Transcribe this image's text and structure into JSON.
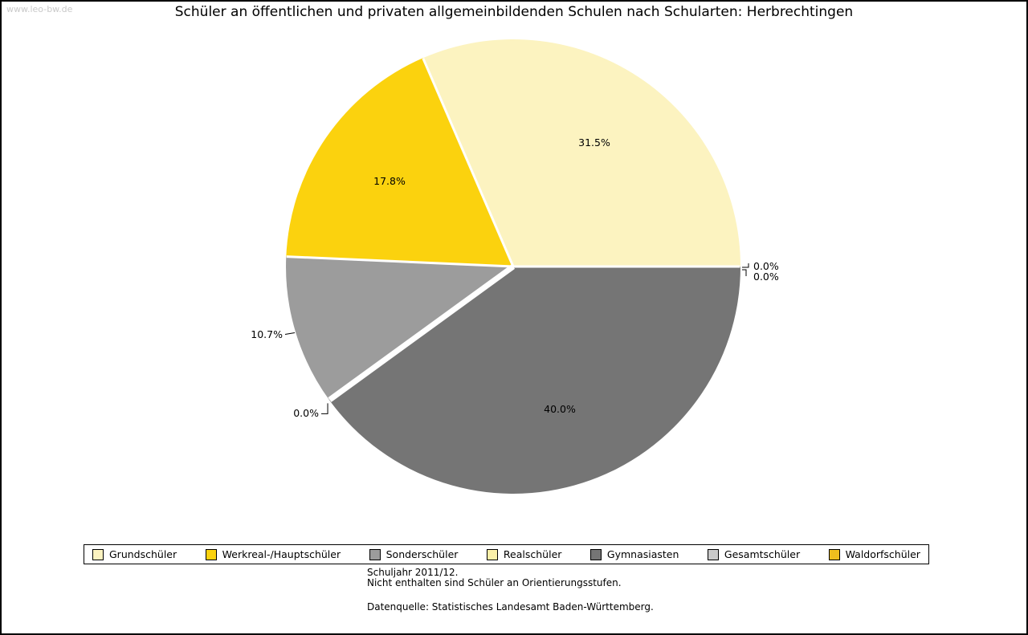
{
  "watermark": "www.leo-bw.de",
  "chart_data": {
    "type": "pie",
    "title": "Schüler an öffentlichen und privaten allgemeinbildenden Schulen nach Schularten: Herbrechtingen",
    "unit": "%",
    "direction": "counterclockwise",
    "start_angle_deg": 0,
    "legend_position": "bottom",
    "series": [
      {
        "name": "Grundschüler",
        "value": 31.5,
        "label": "31.5%",
        "color": "#FCF3C0"
      },
      {
        "name": "Werkreal-/Hauptschüler",
        "value": 17.8,
        "label": "17.8%",
        "color": "#FBD20E"
      },
      {
        "name": "Sonderschüler",
        "value": 10.7,
        "label": "10.7%",
        "color": "#9C9C9C"
      },
      {
        "name": "Realschüler",
        "value": 0.0,
        "label": "0.0%",
        "color": "#FAEFA8"
      },
      {
        "name": "Gymnasiasten",
        "value": 40.0,
        "label": "40.0%",
        "color": "#757575"
      },
      {
        "name": "Gesamtschüler",
        "value": 0.0,
        "label": "0.0%",
        "color": "#C9C9C9"
      },
      {
        "name": "Waldorfschüler",
        "value": 0.0,
        "label": "0.0%",
        "color": "#EEBE1E"
      }
    ]
  },
  "notes": {
    "line1": "Schuljahr 2011/12.",
    "line2": "Nicht enthalten sind Schüler an Orientierungsstufen.",
    "source": "Datenquelle: Statistisches Landesamt Baden-Württemberg."
  }
}
